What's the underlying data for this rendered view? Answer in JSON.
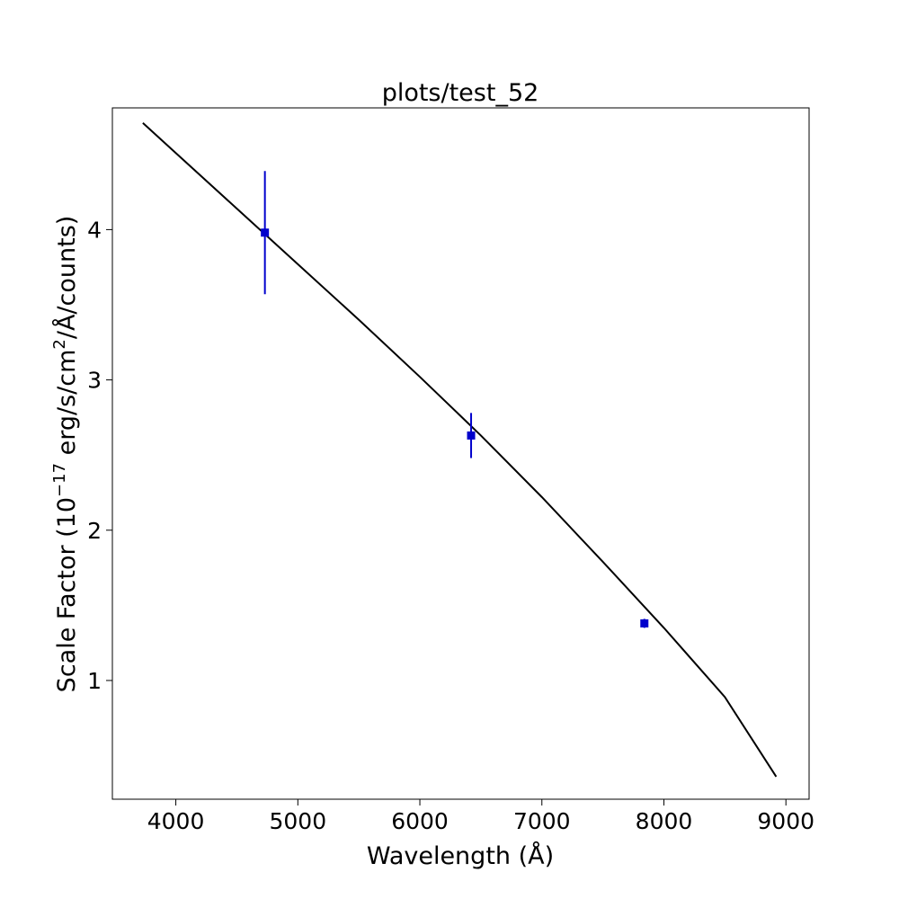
{
  "chart_data": {
    "type": "scatter",
    "title": "plots/test_52",
    "xlabel": "Wavelength (Å)",
    "ylabel_parts": {
      "prefix": "Scale Factor (10",
      "exponent": "−17",
      "middle": " erg/s/cm",
      "sup2": "2",
      "suffix": "/Å/counts)"
    },
    "xlim": [
      3480,
      9190
    ],
    "ylim": [
      0.21,
      4.81
    ],
    "x_ticks": [
      4000,
      5000,
      6000,
      7000,
      8000,
      9000
    ],
    "y_ticks": [
      1,
      2,
      3,
      4
    ],
    "grid": false,
    "series": [
      {
        "kind": "line",
        "color": "#000000",
        "points": [
          [
            3730,
            4.71
          ],
          [
            4000,
            4.51
          ],
          [
            4500,
            4.14
          ],
          [
            5000,
            3.77
          ],
          [
            5500,
            3.4
          ],
          [
            6000,
            3.02
          ],
          [
            6500,
            2.63
          ],
          [
            7000,
            2.22
          ],
          [
            7500,
            1.79
          ],
          [
            8000,
            1.35
          ],
          [
            8500,
            0.89
          ],
          [
            8920,
            0.36
          ]
        ]
      },
      {
        "kind": "errorbar",
        "color": "#0000cc",
        "marker": "square",
        "points": [
          {
            "x": 4730,
            "y": 3.98,
            "err": 0.41
          },
          {
            "x": 6420,
            "y": 2.63,
            "err": 0.15
          },
          {
            "x": 7840,
            "y": 1.38,
            "err": 0.03
          }
        ]
      }
    ]
  }
}
